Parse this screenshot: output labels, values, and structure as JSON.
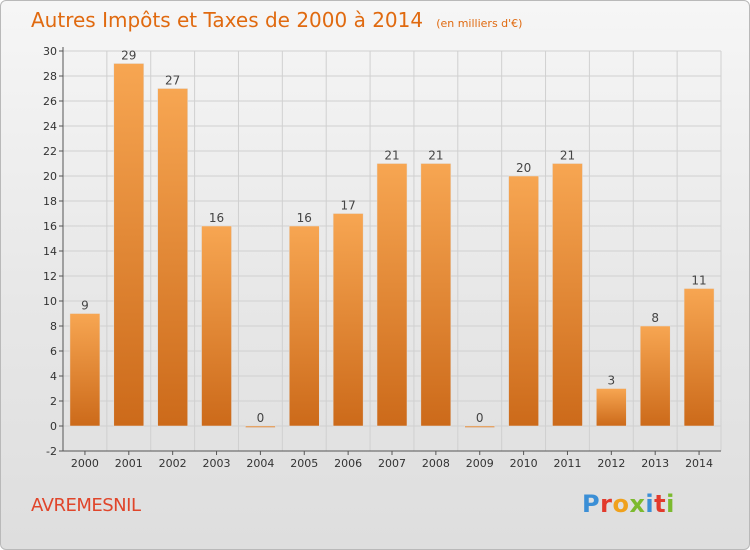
{
  "title": "Autres Impôts et Taxes de 2000 à 2014",
  "unit_note": "(en milliers d'€)",
  "commune": "AVREMESNIL",
  "logo": {
    "letters": [
      "P",
      "r",
      "o",
      "x",
      "i",
      "t",
      "i"
    ],
    "colors": [
      "#3b8fd6",
      "#e23a2c",
      "#f0a11c",
      "#7cba2f",
      "#3b8fd6",
      "#e23a2c",
      "#7cba2f"
    ]
  },
  "colors": {
    "bar_top": "#f7a652",
    "bar_bottom": "#cc6a1a",
    "title": "#e06a10",
    "grid": "#d0d0d0"
  },
  "chart_data": {
    "type": "bar",
    "categories": [
      "2000",
      "2001",
      "2002",
      "2003",
      "2004",
      "2005",
      "2006",
      "2007",
      "2008",
      "2009",
      "2010",
      "2011",
      "2012",
      "2013",
      "2014"
    ],
    "values": [
      9,
      29,
      27,
      16,
      0,
      16,
      17,
      21,
      21,
      0,
      20,
      21,
      3,
      8,
      11
    ],
    "data_labels": [
      "9",
      "29",
      "27",
      "16",
      "0",
      "16",
      "17",
      "21",
      "21",
      "0",
      "20",
      "21",
      "3",
      "8",
      "11"
    ],
    "yticks": [
      -2,
      0,
      2,
      4,
      6,
      8,
      10,
      12,
      14,
      16,
      18,
      20,
      22,
      24,
      26,
      28,
      30
    ],
    "ylim": [
      -2,
      30
    ],
    "grid": true,
    "legend": "none"
  }
}
